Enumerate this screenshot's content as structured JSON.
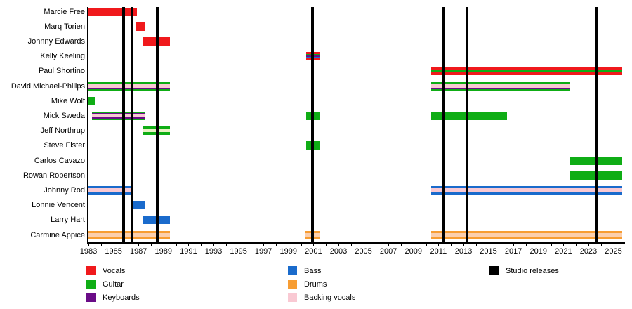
{
  "chart_data": {
    "type": "bar",
    "subtype": "band-membership-timeline",
    "title": "",
    "x_axis": {
      "min": 1983,
      "max": 2025.7,
      "tick_every_years": 1,
      "label_every_years": 2,
      "tick_label_years": [
        1983,
        1985,
        1987,
        1989,
        1991,
        1993,
        1995,
        1997,
        1999,
        2001,
        2003,
        2005,
        2007,
        2009,
        2011,
        2013,
        2015,
        2017,
        2019,
        2021,
        2023,
        2025
      ]
    },
    "palette": {
      "red": "#f0191c",
      "green": "#0fad15",
      "purple": "#6a0c87",
      "blue": "#1a6bcc",
      "orange": "#f79d33",
      "pink": "#f9c9d3",
      "peach": "#fbcfae",
      "pale": "#e9f2c4",
      "black": "#000000"
    },
    "patterns": {
      "vocals": {
        "colors": [
          "red"
        ],
        "weights": [
          1
        ]
      },
      "vocals_guitar": {
        "colors": [
          "red",
          "green",
          "red"
        ],
        "weights": [
          4.5,
          3.5,
          4.5
        ]
      },
      "vocals_guitar_keyboards_bass": {
        "colors": [
          "red",
          "green",
          "purple",
          "blue",
          "red"
        ],
        "weights": [
          3,
          2,
          3,
          2,
          3
        ]
      },
      "guitar": {
        "colors": [
          "green"
        ],
        "weights": [
          1
        ]
      },
      "guitar_keyboards_backing": {
        "colors": [
          "green",
          "purple",
          "pink",
          "purple",
          "green"
        ],
        "weights": [
          2,
          1.5,
          5,
          1.5,
          2
        ]
      },
      "guitar_backing": {
        "colors": [
          "green",
          "pale",
          "green"
        ],
        "weights": [
          4,
          4,
          4
        ]
      },
      "bass": {
        "colors": [
          "blue"
        ],
        "weights": [
          1
        ]
      },
      "bass_backing": {
        "colors": [
          "blue",
          "pink",
          "blue"
        ],
        "weights": [
          3.5,
          5,
          3.5
        ]
      },
      "drums_backing": {
        "colors": [
          "orange",
          "peach",
          "orange"
        ],
        "weights": [
          3.5,
          5,
          3.5
        ]
      }
    },
    "members": [
      {
        "name": "Marcie Free",
        "segments": [
          {
            "start": 1983,
            "end": 1986.9,
            "pattern": "vocals"
          }
        ]
      },
      {
        "name": "Marq Torien",
        "segments": [
          {
            "start": 1986.8,
            "end": 1987.5,
            "pattern": "vocals"
          }
        ]
      },
      {
        "name": "Johnny Edwards",
        "segments": [
          {
            "start": 1987.4,
            "end": 1989.5,
            "pattern": "vocals"
          }
        ]
      },
      {
        "name": "Kelly Keeling",
        "segments": [
          {
            "start": 2000.4,
            "end": 2001.5,
            "pattern": "vocals_guitar_keyboards_bass"
          }
        ]
      },
      {
        "name": "Paul Shortino",
        "segments": [
          {
            "start": 2010.4,
            "end": 2025.7,
            "pattern": "vocals_guitar"
          }
        ]
      },
      {
        "name": "David Michael-Philips",
        "segments": [
          {
            "start": 1983,
            "end": 1989.5,
            "pattern": "guitar_keyboards_backing"
          },
          {
            "start": 2010.4,
            "end": 2021.5,
            "pattern": "guitar_keyboards_backing"
          }
        ]
      },
      {
        "name": "Mike Wolf",
        "segments": [
          {
            "start": 1983,
            "end": 1983.5,
            "pattern": "guitar"
          }
        ]
      },
      {
        "name": "Mick Sweda",
        "segments": [
          {
            "start": 1983.3,
            "end": 1987.5,
            "pattern": "guitar_keyboards_backing"
          },
          {
            "start": 2000.4,
            "end": 2001.5,
            "pattern": "guitar"
          },
          {
            "start": 2010.4,
            "end": 2016.5,
            "pattern": "guitar"
          }
        ]
      },
      {
        "name": "Jeff Northrup",
        "segments": [
          {
            "start": 1987.4,
            "end": 1989.5,
            "pattern": "guitar_backing"
          }
        ]
      },
      {
        "name": "Steve Fister",
        "segments": [
          {
            "start": 2000.4,
            "end": 2001.5,
            "pattern": "guitar"
          }
        ]
      },
      {
        "name": "Carlos Cavazo",
        "segments": [
          {
            "start": 2021.5,
            "end": 2025.7,
            "pattern": "guitar"
          }
        ]
      },
      {
        "name": "Rowan Robertson",
        "segments": [
          {
            "start": 2021.5,
            "end": 2025.7,
            "pattern": "guitar"
          }
        ]
      },
      {
        "name": "Johnny Rod",
        "segments": [
          {
            "start": 1983,
            "end": 1986.5,
            "pattern": "bass_backing"
          },
          {
            "start": 2010.4,
            "end": 2025.7,
            "pattern": "bass_backing"
          }
        ]
      },
      {
        "name": "Lonnie Vencent",
        "segments": [
          {
            "start": 1986.4,
            "end": 1987.5,
            "pattern": "bass"
          }
        ]
      },
      {
        "name": "Larry Hart",
        "segments": [
          {
            "start": 1987.4,
            "end": 1989.5,
            "pattern": "bass"
          }
        ]
      },
      {
        "name": "Carmine Appice",
        "segments": [
          {
            "start": 1983,
            "end": 1989.5,
            "pattern": "drums_backing"
          },
          {
            "start": 2000.3,
            "end": 2001.5,
            "pattern": "drums_backing"
          },
          {
            "start": 2010.4,
            "end": 2025.7,
            "pattern": "drums_backing"
          }
        ]
      }
    ],
    "releases_years": [
      1985.8,
      1986.5,
      1988.5,
      2000.9,
      2011.4,
      2013.3,
      2023.6
    ],
    "legend": {
      "columns": [
        [
          {
            "label": "Vocals",
            "color": "red"
          },
          {
            "label": "Guitar",
            "color": "green"
          },
          {
            "label": "Keyboards",
            "color": "purple"
          }
        ],
        [
          {
            "label": "Bass",
            "color": "blue"
          },
          {
            "label": "Drums",
            "color": "orange"
          },
          {
            "label": "Backing vocals",
            "color": "pink"
          }
        ],
        [
          {
            "label": "Studio releases",
            "color": "black"
          }
        ]
      ]
    }
  }
}
